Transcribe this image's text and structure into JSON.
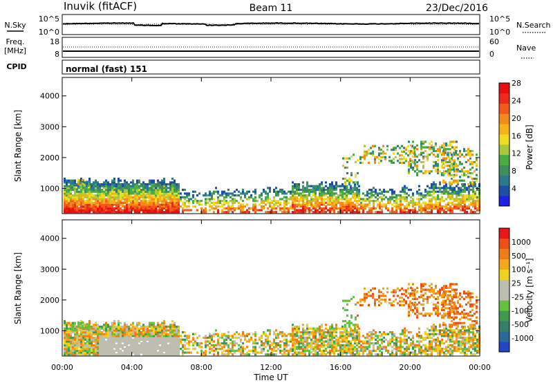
{
  "header": {
    "station": "Inuvik (fitACF)",
    "beam": "Beam 11",
    "date": "23/Dec/2016"
  },
  "noise_panel": {
    "left_label": "N.Sky",
    "left_ticks": [
      "10^5",
      "10^0"
    ],
    "right_ticks": [
      "10^5",
      "10^0"
    ],
    "right_label": "N.Search",
    "line_styles": {
      "sky": "solid",
      "search": "dotted"
    }
  },
  "freq_panel": {
    "left_label_line1": "Freq.",
    "left_label_line2": "[MHz]",
    "left_ticks": [
      "18",
      "8"
    ],
    "right_ticks": [
      "60",
      "0"
    ],
    "right_label": "Nave",
    "line_styles": {
      "freq": "solid",
      "nave": "dotted"
    }
  },
  "cpid": {
    "label": "CPID",
    "program": "normal (fast) 151"
  },
  "chart_data": [
    {
      "type": "heatmap",
      "name": "power",
      "ylabel": "Slant Range [km]",
      "xlabel": "",
      "ylim": [
        180,
        4600
      ],
      "y_ticks": [
        "1000",
        "2000",
        "3000",
        "4000"
      ],
      "colorbar": {
        "label": "Power [dB]",
        "tick_labels": [
          "4",
          "8",
          "12",
          "16",
          "20",
          "24",
          "28"
        ],
        "colors": [
          "#1f1fe6",
          "#1e4fa8",
          "#2b7a8c",
          "#3e8f58",
          "#48ad44",
          "#a8c83a",
          "#f0dc20",
          "#f7b21a",
          "#f58a1c",
          "#f25a1a",
          "#ec2a1a",
          "#e80e0e"
        ]
      }
    },
    {
      "type": "heatmap",
      "name": "velocity",
      "ylabel": "Slant Range [km]",
      "xlabel": "Time UT",
      "ylim": [
        180,
        4600
      ],
      "y_ticks": [
        "1000",
        "2000",
        "3000",
        "4000"
      ],
      "x_ticks": [
        "00:00",
        "04:00",
        "08:00",
        "12:00",
        "16:00",
        "20:00",
        "00:00"
      ],
      "colorbar": {
        "label": "Velocity [m s⁻¹]",
        "tick_labels": [
          "1000",
          "500",
          "100",
          "25",
          "-25",
          "-100",
          "-500",
          "-1000"
        ],
        "colors": [
          "#2446c8",
          "#2a6a9a",
          "#357e6a",
          "#3f9a4e",
          "#62c23e",
          "#bdbdb0",
          "#bdbdb0",
          "#f0d020",
          "#f3a618",
          "#f07c18",
          "#ee4e18",
          "#e81616"
        ]
      }
    }
  ]
}
